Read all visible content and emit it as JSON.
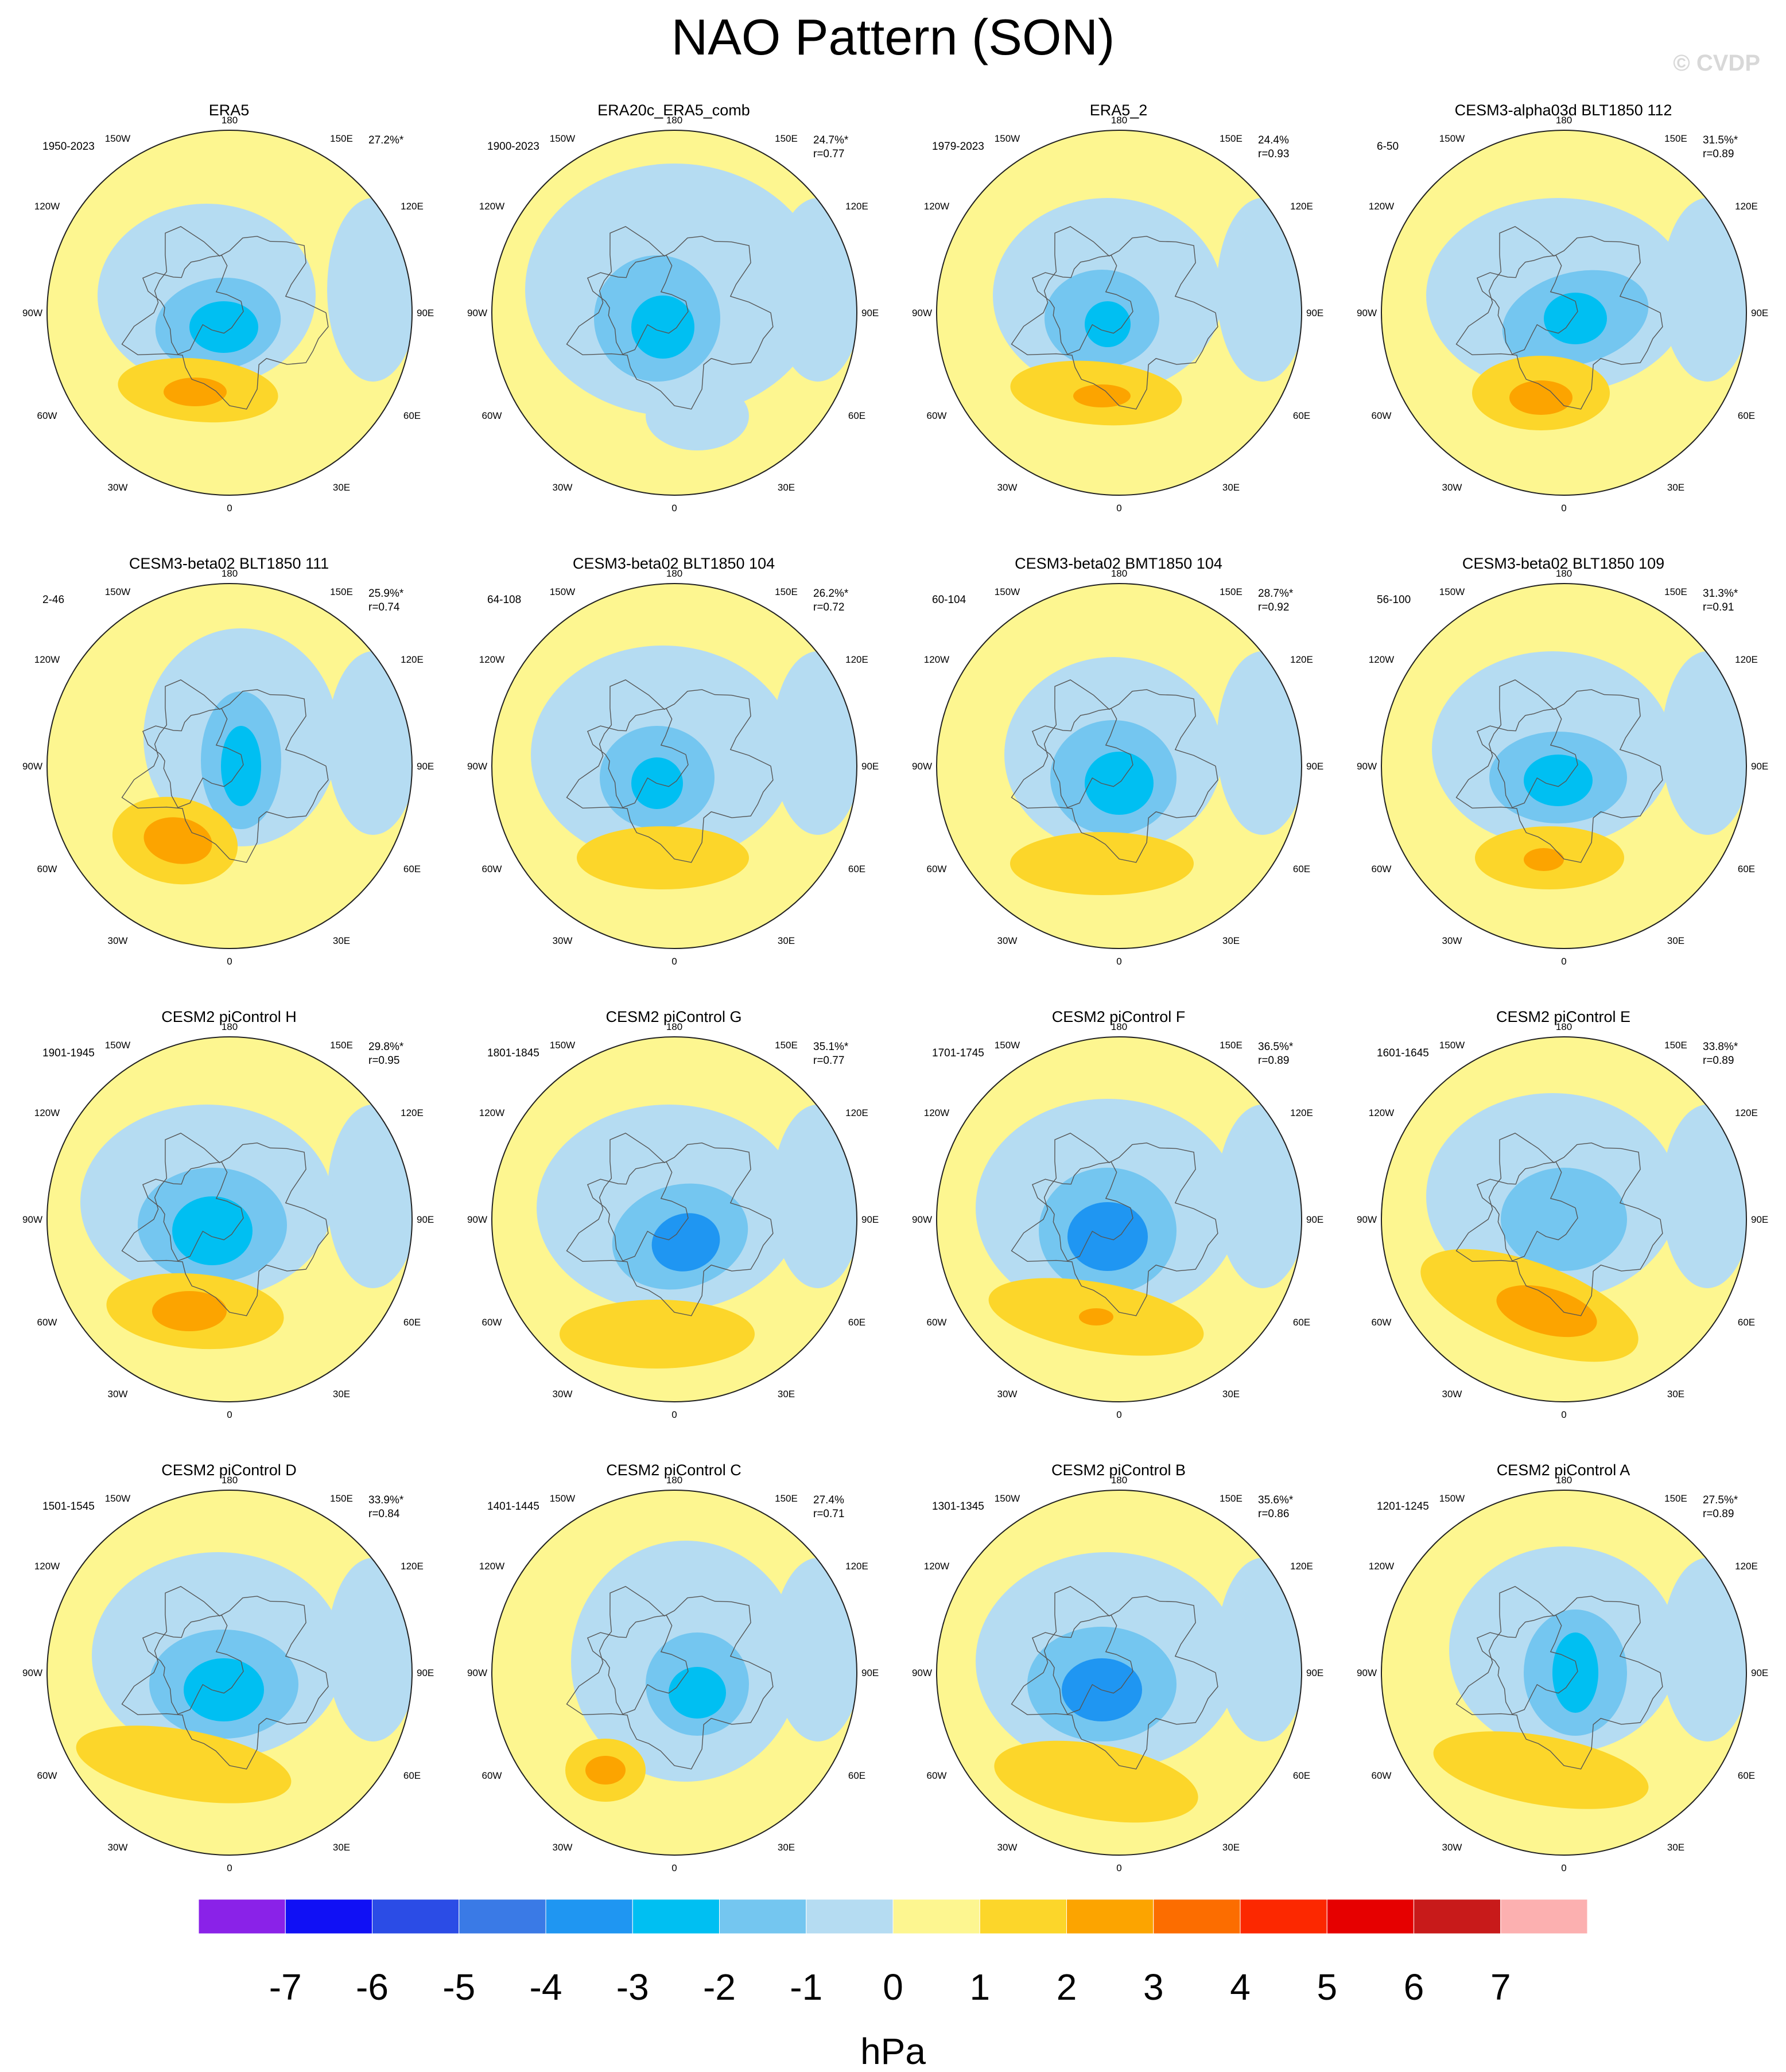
{
  "title": "NAO Pattern (SON)",
  "watermark": "© CVDP",
  "map_labels": {
    "lon_top": "180",
    "lon_bottom": "0",
    "lon_150w": "150W",
    "lon_150e": "150E",
    "lon_120w": "120W",
    "lon_120e": "120E",
    "lon_90w": "90W",
    "lon_90e": "90E",
    "lon_60w": "60W",
    "lon_60e": "60E",
    "lon_30w": "30W",
    "lon_30e": "30E"
  },
  "panels": [
    {
      "title": "ERA5",
      "period": "1950-2023",
      "pct": "27.2%*",
      "r": ""
    },
    {
      "title": "ERA20c_ERA5_comb",
      "period": "1900-2023",
      "pct": "24.7%*",
      "r": "r=0.77"
    },
    {
      "title": "ERA5_2",
      "period": "1979-2023",
      "pct": "24.4%",
      "r": "r=0.93"
    },
    {
      "title": "CESM3-alpha03d BLT1850 112",
      "period": "6-50",
      "pct": "31.5%*",
      "r": "r=0.89"
    },
    {
      "title": "CESM3-beta02 BLT1850 111",
      "period": "2-46",
      "pct": "25.9%*",
      "r": "r=0.74"
    },
    {
      "title": "CESM3-beta02 BLT1850 104",
      "period": "64-108",
      "pct": "26.2%*",
      "r": "r=0.72"
    },
    {
      "title": "CESM3-beta02 BMT1850 104",
      "period": "60-104",
      "pct": "28.7%*",
      "r": "r=0.92"
    },
    {
      "title": "CESM3-beta02 BLT1850 109",
      "period": "56-100",
      "pct": "31.3%*",
      "r": "r=0.91"
    },
    {
      "title": "CESM2 piControl H",
      "period": "1901-1945",
      "pct": "29.8%*",
      "r": "r=0.95"
    },
    {
      "title": "CESM2 piControl G",
      "period": "1801-1845",
      "pct": "35.1%*",
      "r": "r=0.77"
    },
    {
      "title": "CESM2 piControl F",
      "period": "1701-1745",
      "pct": "36.5%*",
      "r": "r=0.89"
    },
    {
      "title": "CESM2 piControl E",
      "period": "1601-1645",
      "pct": "33.8%*",
      "r": "r=0.89"
    },
    {
      "title": "CESM2 piControl D",
      "period": "1501-1545",
      "pct": "33.9%*",
      "r": "r=0.84"
    },
    {
      "title": "CESM2 piControl C",
      "period": "1401-1445",
      "pct": "27.4%",
      "r": "r=0.71"
    },
    {
      "title": "CESM2 piControl B",
      "period": "1301-1345",
      "pct": "35.6%*",
      "r": "r=0.86"
    },
    {
      "title": "CESM2 piControl A",
      "period": "1201-1245",
      "pct": "27.5%*",
      "r": "r=0.89"
    }
  ],
  "colorbar": {
    "unit": "hPa",
    "ticks": [
      "-7",
      "-6",
      "-5",
      "-4",
      "-3",
      "-2",
      "-1",
      "0",
      "1",
      "2",
      "3",
      "4",
      "5",
      "6",
      "7"
    ],
    "colors": [
      "#8a22e8",
      "#1010f5",
      "#2b4ce6",
      "#3a7ae6",
      "#1f96f2",
      "#00bff2",
      "#74c6f0",
      "#b5dcf2",
      "#fdf690",
      "#fcd62a",
      "#fca400",
      "#fc6d00",
      "#fc2800",
      "#e60000",
      "#c81a1a",
      "#fcb0b0"
    ]
  }
}
